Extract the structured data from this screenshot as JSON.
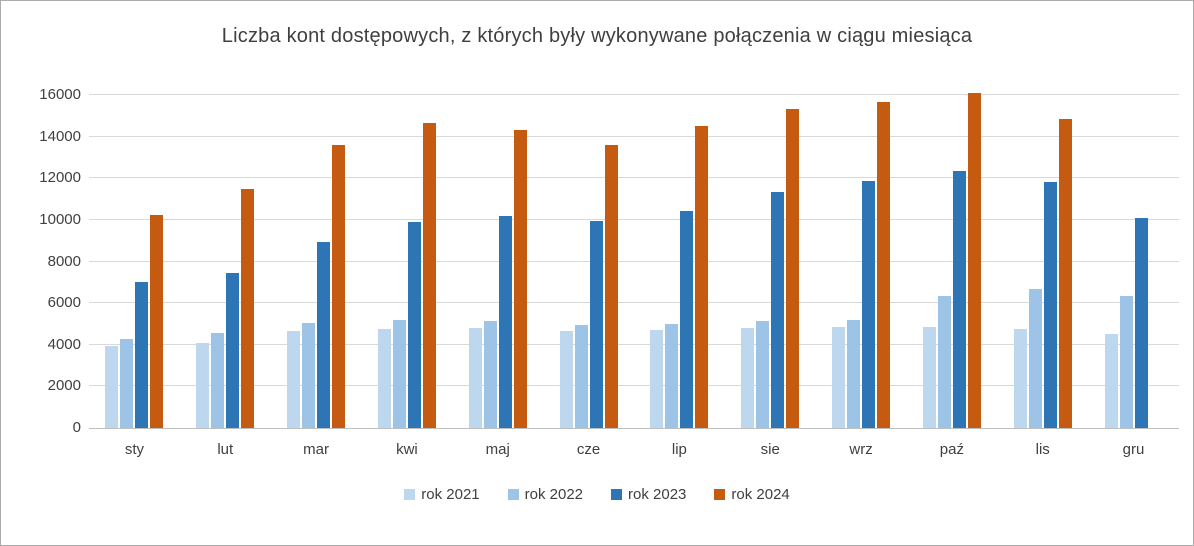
{
  "chart_data": {
    "type": "bar",
    "title": "Liczba kont dostępowych, z których były wykonywane połączenia w ciągu miesiąca",
    "categories": [
      "sty",
      "lut",
      "mar",
      "kwi",
      "maj",
      "cze",
      "lip",
      "sie",
      "wrz",
      "paź",
      "lis",
      "gru"
    ],
    "series": [
      {
        "name": "rok 2021",
        "color": "#BDD7EE",
        "values": [
          3950,
          4100,
          4650,
          4750,
          4800,
          4650,
          4700,
          4800,
          4850,
          4850,
          4750,
          4500
        ]
      },
      {
        "name": "rok 2022",
        "color": "#9DC3E6",
        "values": [
          4300,
          4550,
          5050,
          5200,
          5150,
          4950,
          5000,
          5150,
          5200,
          6350,
          6700,
          6350
        ]
      },
      {
        "name": "rok 2023",
        "color": "#2E75B6",
        "values": [
          7000,
          7450,
          8950,
          9900,
          10200,
          9950,
          10450,
          11350,
          11850,
          12350,
          11800,
          10100
        ]
      },
      {
        "name": "rok 2024",
        "color": "#C55A11",
        "values": [
          10250,
          11500,
          13600,
          14650,
          14300,
          13600,
          14500,
          15350,
          15650,
          16100,
          14850,
          null
        ]
      }
    ],
    "xlabel": "",
    "ylabel": "",
    "ylim": [
      0,
      16000
    ],
    "ytick_step": 2000,
    "grid": true,
    "legend_position": "bottom"
  }
}
